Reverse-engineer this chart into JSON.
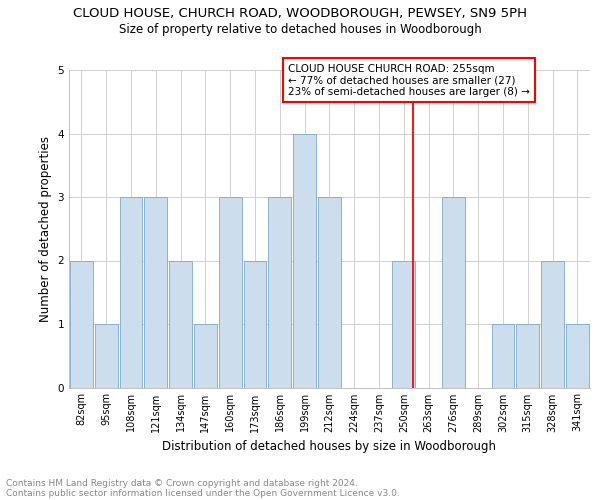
{
  "title": "CLOUD HOUSE, CHURCH ROAD, WOODBOROUGH, PEWSEY, SN9 5PH",
  "subtitle": "Size of property relative to detached houses in Woodborough",
  "xlabel": "Distribution of detached houses by size in Woodborough",
  "ylabel": "Number of detached properties",
  "categories": [
    "82sqm",
    "95sqm",
    "108sqm",
    "121sqm",
    "134sqm",
    "147sqm",
    "160sqm",
    "173sqm",
    "186sqm",
    "199sqm",
    "212sqm",
    "224sqm",
    "237sqm",
    "250sqm",
    "263sqm",
    "276sqm",
    "289sqm",
    "302sqm",
    "315sqm",
    "328sqm",
    "341sqm"
  ],
  "bar_heights": [
    2,
    1,
    3,
    3,
    2,
    1,
    3,
    2,
    3,
    4,
    3,
    0,
    0,
    2,
    0,
    3,
    0,
    1,
    1,
    2,
    1
  ],
  "bar_color": "#ccdded",
  "bar_edgecolor": "#7aaac8",
  "annotation_box_text": "CLOUD HOUSE CHURCH ROAD: 255sqm\n← 77% of detached houses are smaller (27)\n23% of semi-detached houses are larger (8) →",
  "footer_line1": "Contains HM Land Registry data © Crown copyright and database right 2024.",
  "footer_line2": "Contains public sector information licensed under the Open Government Licence v3.0.",
  "ylim": [
    0,
    5
  ],
  "yticks": [
    0,
    1,
    2,
    3,
    4,
    5
  ],
  "title_fontsize": 9.5,
  "subtitle_fontsize": 8.5,
  "xlabel_fontsize": 8.5,
  "ylabel_fontsize": 8.5,
  "tick_fontsize": 7,
  "annotation_fontsize": 7.5,
  "footer_fontsize": 6.5,
  "red_line_index": 13.38
}
